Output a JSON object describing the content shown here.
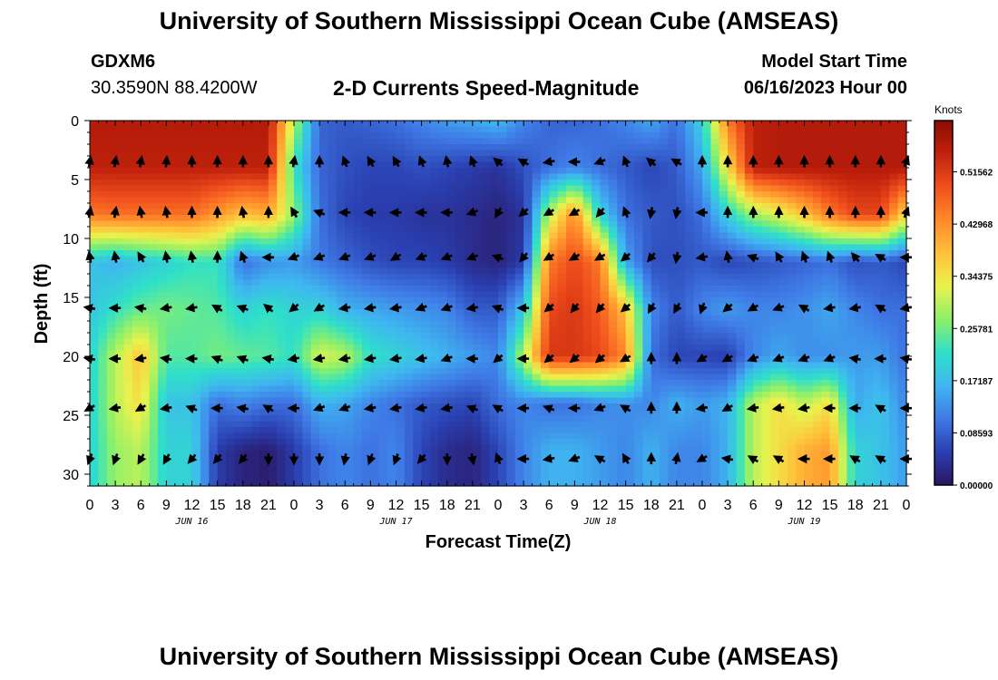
{
  "header": {
    "title": "University of Southern Mississippi Ocean Cube (AMSEAS)",
    "station": "GDXM6",
    "coords": "30.3590N  88.4200W",
    "plot_title": "2-D Currents Speed-Magnitude",
    "model_label": "Model Start Time",
    "model_time": "06/16/2023 Hour 00"
  },
  "footer": {
    "title": "University of Southern Mississippi Ocean Cube (AMSEAS)"
  },
  "chart_data": {
    "type": "heatmap",
    "title": "2-D Currents Speed-Magnitude",
    "xlabel": "Forecast Time(Z)",
    "ylabel": "Depth (ft)",
    "xlim": [
      0,
      96
    ],
    "ylim": [
      0,
      31
    ],
    "x_ticks": [
      "0",
      "3",
      "6",
      "9",
      "12",
      "15",
      "18",
      "21",
      "0",
      "3",
      "6",
      "9",
      "12",
      "15",
      "18",
      "21",
      "0",
      "3",
      "6",
      "9",
      "12",
      "15",
      "18",
      "21",
      "0",
      "3",
      "6",
      "9",
      "12",
      "15",
      "18",
      "21",
      "0"
    ],
    "day_labels": [
      {
        "hour": 12,
        "label": "JUN 16"
      },
      {
        "hour": 36,
        "label": "JUN 17"
      },
      {
        "hour": 60,
        "label": "JUN 18"
      },
      {
        "hour": 84,
        "label": "JUN 19"
      }
    ],
    "y_ticks": [
      "0",
      "5",
      "10",
      "15",
      "20",
      "25",
      "30"
    ],
    "colorbar": {
      "units": "Knots",
      "tick_values": [
        0.0,
        0.08593,
        0.17187,
        0.25781,
        0.34375,
        0.42968,
        0.51562
      ],
      "tick_labels": [
        "0.00000",
        "0.08593",
        "0.17187",
        "0.25781",
        "0.34375",
        "0.42968",
        "0.51562"
      ],
      "max": 0.6,
      "colors": [
        "#2b1560",
        "#2a3fb0",
        "#3f7ae6",
        "#3fb6f0",
        "#2fe0c8",
        "#8cf06a",
        "#e9f24d",
        "#ffc13a",
        "#ff8a2a",
        "#f0501d",
        "#c2220c",
        "#8b0d04"
      ]
    },
    "depths": [
      0,
      4,
      8,
      12,
      16,
      20,
      24,
      28,
      31
    ],
    "hours": [
      0,
      3,
      6,
      9,
      12,
      15,
      18,
      21,
      24,
      27,
      30,
      33,
      36,
      39,
      42,
      45,
      48,
      51,
      54,
      57,
      60,
      63,
      66,
      69,
      72,
      75,
      78,
      81,
      84,
      87,
      90,
      93,
      96
    ],
    "speed_knots": [
      [
        0.56,
        0.56,
        0.56,
        0.56,
        0.56,
        0.56,
        0.56,
        0.56,
        0.3,
        0.09,
        0.08,
        0.09,
        0.1,
        0.12,
        0.14,
        0.15,
        0.17,
        0.12,
        0.09,
        0.09,
        0.1,
        0.12,
        0.15,
        0.1,
        0.2,
        0.45,
        0.55,
        0.56,
        0.56,
        0.56,
        0.56,
        0.56,
        0.56
      ],
      [
        0.55,
        0.55,
        0.55,
        0.55,
        0.55,
        0.55,
        0.55,
        0.55,
        0.22,
        0.09,
        0.07,
        0.06,
        0.06,
        0.07,
        0.06,
        0.05,
        0.04,
        0.07,
        0.1,
        0.12,
        0.1,
        0.08,
        0.06,
        0.08,
        0.15,
        0.35,
        0.55,
        0.56,
        0.56,
        0.56,
        0.56,
        0.56,
        0.56
      ],
      [
        0.45,
        0.46,
        0.46,
        0.46,
        0.46,
        0.42,
        0.38,
        0.4,
        0.28,
        0.1,
        0.06,
        0.05,
        0.05,
        0.04,
        0.04,
        0.03,
        0.02,
        0.04,
        0.3,
        0.44,
        0.2,
        0.1,
        0.08,
        0.07,
        0.1,
        0.2,
        0.28,
        0.32,
        0.38,
        0.45,
        0.5,
        0.5,
        0.35
      ],
      [
        0.18,
        0.16,
        0.18,
        0.2,
        0.22,
        0.22,
        0.1,
        0.13,
        0.14,
        0.11,
        0.09,
        0.07,
        0.06,
        0.06,
        0.05,
        0.03,
        0.02,
        0.05,
        0.45,
        0.5,
        0.45,
        0.15,
        0.07,
        0.07,
        0.08,
        0.06,
        0.07,
        0.08,
        0.09,
        0.1,
        0.07,
        0.08,
        0.06
      ],
      [
        0.18,
        0.22,
        0.25,
        0.26,
        0.25,
        0.24,
        0.2,
        0.22,
        0.2,
        0.2,
        0.16,
        0.15,
        0.14,
        0.13,
        0.12,
        0.08,
        0.08,
        0.18,
        0.5,
        0.52,
        0.48,
        0.38,
        0.12,
        0.08,
        0.12,
        0.14,
        0.12,
        0.12,
        0.13,
        0.15,
        0.12,
        0.1,
        0.1
      ],
      [
        0.2,
        0.3,
        0.38,
        0.24,
        0.24,
        0.26,
        0.25,
        0.24,
        0.22,
        0.32,
        0.3,
        0.22,
        0.2,
        0.18,
        0.16,
        0.14,
        0.12,
        0.3,
        0.52,
        0.52,
        0.5,
        0.44,
        0.1,
        0.06,
        0.06,
        0.05,
        0.12,
        0.15,
        0.13,
        0.13,
        0.14,
        0.14,
        0.1
      ],
      [
        0.2,
        0.3,
        0.35,
        0.18,
        0.18,
        0.1,
        0.12,
        0.1,
        0.1,
        0.16,
        0.15,
        0.12,
        0.1,
        0.08,
        0.07,
        0.06,
        0.1,
        0.12,
        0.1,
        0.1,
        0.12,
        0.13,
        0.12,
        0.16,
        0.14,
        0.16,
        0.3,
        0.35,
        0.3,
        0.35,
        0.15,
        0.18,
        0.12
      ],
      [
        0.2,
        0.28,
        0.3,
        0.2,
        0.2,
        0.05,
        0.02,
        0.01,
        0.05,
        0.1,
        0.12,
        0.1,
        0.12,
        0.06,
        0.03,
        0.02,
        0.06,
        0.12,
        0.16,
        0.16,
        0.14,
        0.12,
        0.16,
        0.12,
        0.12,
        0.16,
        0.3,
        0.35,
        0.4,
        0.42,
        0.2,
        0.18,
        0.14
      ],
      [
        0.2,
        0.28,
        0.3,
        0.2,
        0.2,
        0.05,
        0.02,
        0.01,
        0.05,
        0.1,
        0.12,
        0.1,
        0.12,
        0.06,
        0.03,
        0.02,
        0.06,
        0.12,
        0.16,
        0.16,
        0.14,
        0.12,
        0.16,
        0.12,
        0.12,
        0.16,
        0.3,
        0.35,
        0.4,
        0.42,
        0.2,
        0.18,
        0.14
      ]
    ],
    "arrow_depths": [
      3.5,
      7.8,
      11.6,
      15.9,
      20.2,
      24.4,
      28.7
    ],
    "arrow_hours": [
      0,
      3,
      6,
      9,
      12,
      15,
      18,
      21,
      24,
      27,
      30,
      33,
      36,
      39,
      42,
      45,
      48,
      51,
      54,
      57,
      60,
      63,
      66,
      69,
      72,
      75,
      78,
      81,
      84,
      87,
      90,
      93,
      96
    ],
    "arrow_dir_deg": [
      [
        10,
        10,
        10,
        5,
        0,
        0,
        0,
        0,
        10,
        0,
        -20,
        -30,
        -30,
        -20,
        -10,
        -20,
        -50,
        -60,
        -100,
        -90,
        -110,
        -20,
        -50,
        -60,
        0,
        0,
        0,
        0,
        0,
        0,
        0,
        0,
        20
      ],
      [
        10,
        10,
        -10,
        -10,
        0,
        0,
        -10,
        0,
        -30,
        -70,
        -90,
        -90,
        -90,
        -90,
        -90,
        -110,
        -150,
        -130,
        -120,
        -120,
        -140,
        -20,
        -170,
        -170,
        -90,
        0,
        0,
        0,
        0,
        0,
        0,
        0,
        20
      ],
      [
        -10,
        -10,
        -30,
        -10,
        -10,
        0,
        -20,
        -90,
        -110,
        -110,
        -110,
        -110,
        -120,
        -110,
        -110,
        -110,
        -70,
        -140,
        -120,
        -120,
        -120,
        -130,
        -140,
        -170,
        -100,
        -10,
        -70,
        -30,
        -20,
        -20,
        -40,
        -60,
        -90
      ],
      [
        -80,
        -90,
        -80,
        -100,
        -100,
        -60,
        -70,
        -50,
        -130,
        -120,
        -100,
        -100,
        -100,
        -110,
        -110,
        -100,
        -70,
        -90,
        -130,
        -140,
        -140,
        -130,
        -150,
        -150,
        -160,
        -130,
        -120,
        -110,
        -60,
        -100,
        -100,
        -60,
        -100
      ],
      [
        -80,
        -90,
        -100,
        -80,
        -90,
        -70,
        -70,
        -80,
        -100,
        -100,
        -100,
        -100,
        -100,
        -100,
        -110,
        -90,
        -130,
        -90,
        -130,
        -130,
        -130,
        -120,
        0,
        0,
        -120,
        -120,
        -110,
        -110,
        -110,
        -110,
        -80,
        -90,
        -80
      ],
      [
        -120,
        -100,
        -120,
        -100,
        -70,
        -90,
        -80,
        -60,
        -90,
        -110,
        -110,
        -100,
        -100,
        -100,
        -100,
        -70,
        -60,
        -90,
        -70,
        -90,
        -110,
        -60,
        0,
        0,
        -100,
        -120,
        -100,
        -100,
        -100,
        -90,
        -90,
        -60,
        -90
      ],
      [
        -160,
        -160,
        -150,
        -150,
        -140,
        -140,
        -140,
        180,
        180,
        180,
        -170,
        -160,
        -160,
        -140,
        180,
        170,
        -20,
        -90,
        -100,
        -110,
        -60,
        -30,
        0,
        10,
        -120,
        -80,
        -60,
        -60,
        -90,
        -90,
        -60,
        -60,
        -90
      ]
    ]
  }
}
